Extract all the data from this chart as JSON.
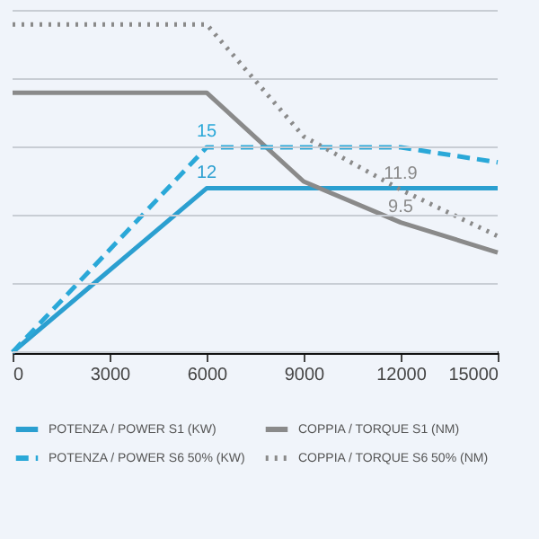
{
  "chart_data": {
    "type": "line",
    "x": [
      0,
      6000,
      9000,
      12000,
      15000
    ],
    "xlim": [
      0,
      15000
    ],
    "xticks": [
      0,
      3000,
      6000,
      9000,
      12000,
      15000
    ],
    "ylim": [
      0,
      25
    ],
    "yticks": [
      {
        "value": 0,
        "label": null
      },
      {
        "value": 5,
        "label": null
      },
      {
        "value": 10,
        "label": null
      },
      {
        "value": 15,
        "label": null
      },
      {
        "value": 20,
        "label": null
      },
      {
        "value": 25,
        "label": null
      }
    ],
    "tick_labels": "x",
    "grid": "y",
    "legend": "bottom",
    "series": [
      {
        "name": "POTENZA / POWER S1 (KW)",
        "color": "#2b9fd0",
        "line_style": "solid",
        "values": [
          0,
          12,
          12,
          12,
          12
        ],
        "value_labels": [
          null,
          "12",
          null,
          null,
          null
        ]
      },
      {
        "name": "COPPIA / TORQUE S1 (NM)",
        "color": "#8a8a8a",
        "line_style": "solid",
        "values": [
          19,
          19,
          12.5,
          9.5,
          7.3
        ],
        "value_labels": [
          null,
          null,
          null,
          "9.5",
          null
        ]
      },
      {
        "name": "POTENZA / POWER S6 50% (KW)",
        "color": "#2aa8d8",
        "line_style": "dashed",
        "values": [
          0,
          15,
          15,
          15,
          13.9
        ],
        "value_labels": [
          null,
          "15",
          null,
          null,
          null
        ]
      },
      {
        "name": "COPPIA / TORQUE S6 50% (NM)",
        "color": "#8a8a8a",
        "line_style": "dotted",
        "values": [
          24,
          24,
          15.8,
          11.9,
          8.5
        ],
        "value_labels": [
          null,
          null,
          null,
          "11.9",
          null
        ]
      }
    ]
  }
}
